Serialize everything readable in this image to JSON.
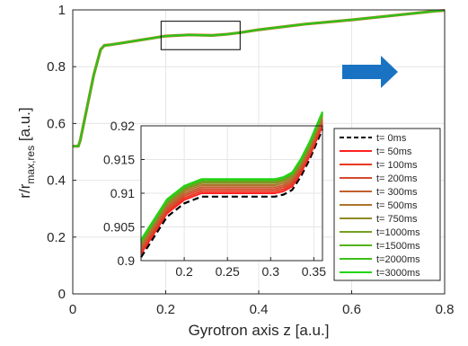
{
  "chart_data": [
    {
      "type": "line",
      "xlabel": "Gyrotron axis z [a.u.]",
      "ylabel_main": "r/r",
      "ylabel_sub": "max,res",
      "ylabel_unit": " [a.u.]",
      "xlim": [
        0,
        0.8
      ],
      "ylim": [
        0,
        1
      ],
      "xticks": [
        0,
        0.2,
        0.4,
        0.6,
        0.8
      ],
      "xtick_labels": [
        "0",
        "0.2",
        "0.4",
        "0.6",
        "0.8"
      ],
      "yticks": [
        0,
        0.2,
        0.4,
        0.6,
        0.8,
        1
      ],
      "ytick_labels": [
        "0",
        "0.2",
        "0.4",
        "0.6",
        "0.8",
        "1"
      ],
      "grid": true,
      "series": [
        {
          "color": "#2ec11a",
          "x": [
            0.0,
            0.012,
            0.016,
            0.03,
            0.045,
            0.06,
            0.068,
            0.08,
            0.1,
            0.15,
            0.2,
            0.25,
            0.3,
            0.33,
            0.36,
            0.4,
            0.5,
            0.6,
            0.7,
            0.78,
            0.8
          ],
          "values": [
            0.52,
            0.52,
            0.54,
            0.65,
            0.77,
            0.86,
            0.875,
            0.877,
            0.882,
            0.895,
            0.908,
            0.912,
            0.91,
            0.914,
            0.92,
            0.93,
            0.95,
            0.965,
            0.982,
            0.996,
            0.998
          ]
        }
      ],
      "zoom_box": {
        "x": [
          0.19,
          0.36
        ],
        "y": [
          0.86,
          0.96
        ]
      },
      "arrow_color": "#1a73c2"
    },
    {
      "type": "line",
      "xlim": [
        0.15,
        0.36
      ],
      "ylim": [
        0.9,
        0.92
      ],
      "xticks": [
        0.2,
        0.25,
        0.3,
        0.35
      ],
      "xtick_labels": [
        "0.2",
        "0.25",
        "0.3",
        "0.35"
      ],
      "yticks": [
        0.9,
        0.905,
        0.91,
        0.915,
        0.92
      ],
      "ytick_labels": [
        "0.9",
        "0.905",
        "0.91",
        "0.915",
        "0.92"
      ],
      "grid": true,
      "legend_position": "right",
      "x": [
        0.15,
        0.165,
        0.18,
        0.2,
        0.22,
        0.25,
        0.28,
        0.305,
        0.315,
        0.325,
        0.335,
        0.345,
        0.36
      ],
      "base": [
        0.9005,
        0.9035,
        0.9065,
        0.9085,
        0.9095,
        0.9095,
        0.9095,
        0.9095,
        0.9098,
        0.9105,
        0.9125,
        0.915,
        0.9195
      ],
      "series": [
        {
          "name": "t=    0ms",
          "offset": 0.0,
          "color": "#000000",
          "dash": true
        },
        {
          "name": "t=  50ms",
          "offset": 0.0005,
          "color": "#ff2020"
        },
        {
          "name": "t= 100ms",
          "offset": 0.0008,
          "color": "#e83a22"
        },
        {
          "name": "t= 200ms",
          "offset": 0.0011,
          "color": "#d44a2e"
        },
        {
          "name": "t= 300ms",
          "offset": 0.0014,
          "color": "#c2602e"
        },
        {
          "name": "t= 500ms",
          "offset": 0.0017,
          "color": "#ad742e"
        },
        {
          "name": "t= 750ms",
          "offset": 0.002,
          "color": "#8f8a24"
        },
        {
          "name": "t=1000ms",
          "offset": 0.0022,
          "color": "#74a022"
        },
        {
          "name": "t=1500ms",
          "offset": 0.0024,
          "color": "#55b21c"
        },
        {
          "name": "t=2000ms",
          "offset": 0.0025,
          "color": "#3cc01a"
        },
        {
          "name": "t=3000ms",
          "offset": 0.0026,
          "color": "#22d414"
        }
      ]
    }
  ]
}
